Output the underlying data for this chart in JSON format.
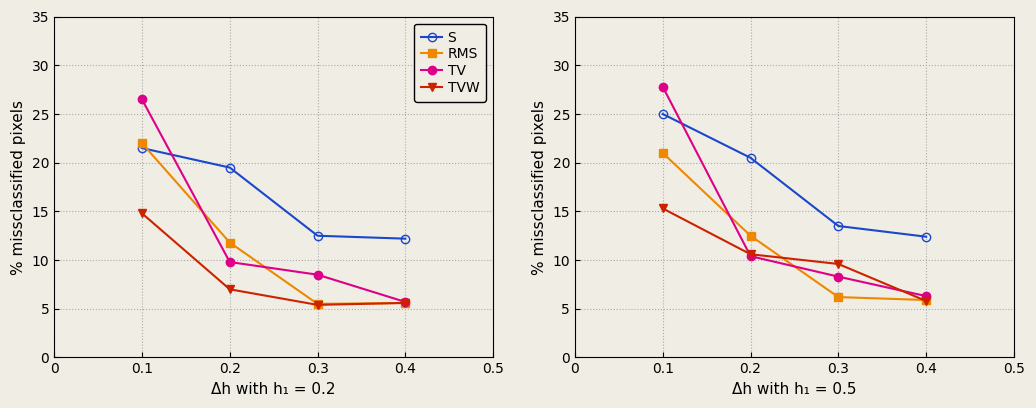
{
  "x": [
    0.1,
    0.2,
    0.3,
    0.4
  ],
  "plot1": {
    "S": [
      21.5,
      19.5,
      12.5,
      12.2
    ],
    "RMS": [
      22.0,
      11.8,
      5.5,
      5.6
    ],
    "TV": [
      26.5,
      9.8,
      8.5,
      5.7
    ],
    "TVW": [
      14.8,
      7.0,
      5.4,
      5.6
    ]
  },
  "plot2": {
    "S": [
      25.0,
      20.5,
      13.5,
      12.4
    ],
    "RMS": [
      21.0,
      12.5,
      6.2,
      5.9
    ],
    "TV": [
      27.8,
      10.4,
      8.3,
      6.3
    ],
    "TVW": [
      15.3,
      10.6,
      9.6,
      5.8
    ]
  },
  "xlabel1": "Δh with h₁ = 0.2",
  "xlabel2": "Δh with h₁ = 0.5",
  "ylabel": "% missclassified pixels",
  "xlim": [
    0,
    0.5
  ],
  "ylim": [
    0,
    35
  ],
  "yticks": [
    0,
    5,
    10,
    15,
    20,
    25,
    30,
    35
  ],
  "xticks": [
    0,
    0.1,
    0.2,
    0.3,
    0.4,
    0.5
  ],
  "bg_color": "#f0ede4",
  "series_colors": {
    "S": "#1a47cc",
    "RMS": "#ee8800",
    "TV": "#dd0088",
    "TVW": "#cc2200"
  },
  "series_markers": {
    "S": "o",
    "RMS": "s",
    "TV": "o",
    "TVW": "v"
  },
  "series_markerfacecolor": {
    "S": "none",
    "RMS": "#ee8800",
    "TV": "#dd0088",
    "TVW": "#cc2200"
  },
  "series_order": [
    "S",
    "RMS",
    "TV",
    "TVW"
  ],
  "markersize": 6,
  "linewidth": 1.5,
  "grid_color": "#aaaaaa",
  "tick_fontsize": 10,
  "label_fontsize": 11,
  "legend_fontsize": 10
}
